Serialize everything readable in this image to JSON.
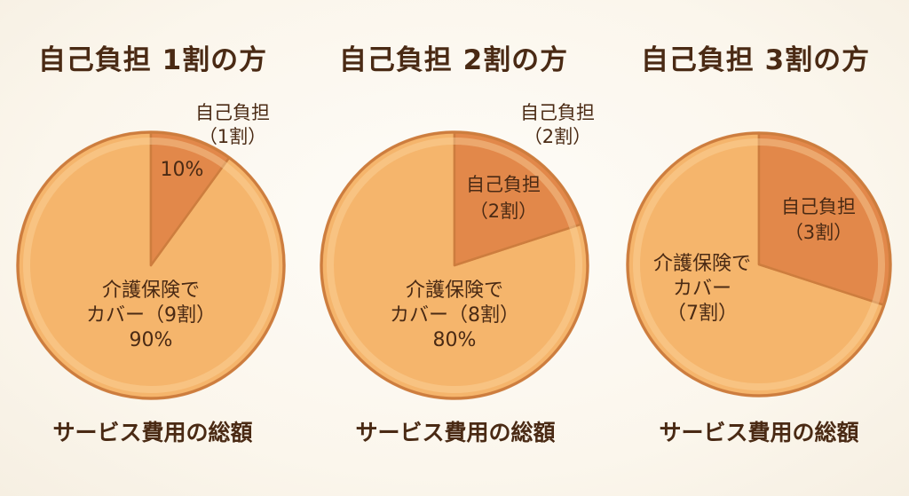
{
  "colors": {
    "background": "#fbf7ef",
    "text": "#4a2a14",
    "outline": "#cd7d3e"
  },
  "chart_data": [
    {
      "type": "pie",
      "title": "自己負担 1割の方",
      "slices": [
        {
          "value": 10,
          "color": "#e2884a",
          "label_lines": [
            "10%"
          ],
          "callout_lines": [
            "自己負担",
            "（1割）"
          ]
        },
        {
          "value": 90,
          "color": "#f5b56c",
          "label_lines": [
            "介護保険で",
            "カバー（9割）",
            "90%"
          ]
        }
      ],
      "total_label": "サービス費用の総額"
    },
    {
      "type": "pie",
      "title": "自己負担 2割の方",
      "slices": [
        {
          "value": 20,
          "color": "#e2884a",
          "label_lines": [
            "自己負担",
            "（2割）"
          ],
          "callout_lines": [
            "自己負担",
            "（2割）"
          ]
        },
        {
          "value": 80,
          "color": "#f5b56c",
          "label_lines": [
            "介護保険で",
            "カバー（8割）",
            "80%"
          ]
        }
      ],
      "total_label": "サービス費用の総額"
    },
    {
      "type": "pie",
      "title": "自己負担 3割の方",
      "slices": [
        {
          "value": 30,
          "color": "#e2884a",
          "label_lines": [
            "自己負担",
            "（3割）"
          ]
        },
        {
          "value": 70,
          "color": "#f5b56c",
          "label_lines": [
            "介護保険で",
            "カバー",
            "（7割）"
          ]
        }
      ],
      "total_label": "サービス費用の総額"
    }
  ]
}
